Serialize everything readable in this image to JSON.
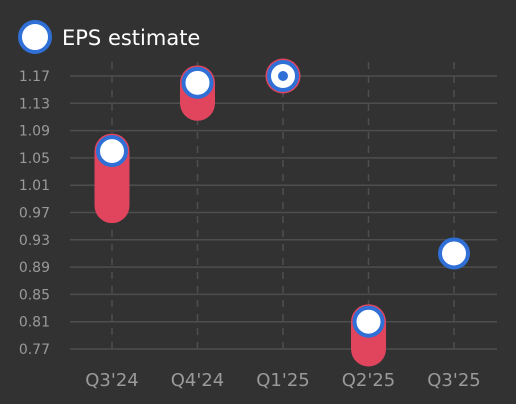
{
  "legend": {
    "label": "EPS estimate",
    "placement": "top-left"
  },
  "colors": {
    "background": "#323232",
    "grid": "#4e4e4e",
    "tick_text": "#9a9a9a",
    "legend_text": "#ffffff",
    "marker_stroke": "#2f6fd6",
    "marker_fill": "#ffffff",
    "bar": "#e0455d"
  },
  "chart_data": {
    "type": "scatter",
    "categories": [
      "Q3'24",
      "Q4'24",
      "Q1'25",
      "Q2'25",
      "Q3'25"
    ],
    "series": [
      {
        "name": "EPS estimate",
        "values": [
          1.06,
          1.16,
          1.17,
          0.81,
          0.91
        ]
      }
    ],
    "difference_bars": [
      {
        "category": "Q3'24",
        "from": 0.98,
        "to": 1.06
      },
      {
        "category": "Q4'24",
        "from": 1.13,
        "to": 1.16
      },
      {
        "category": "Q1'25",
        "from": 1.17,
        "to": 1.17
      },
      {
        "category": "Q2'25",
        "from": 0.77,
        "to": 0.81
      }
    ],
    "yticks": [
      0.77,
      0.81,
      0.85,
      0.89,
      0.93,
      0.97,
      1.01,
      1.05,
      1.09,
      1.13,
      1.17
    ],
    "ytick_labels": [
      "0.77",
      "0.81",
      "0.85",
      "0.89",
      "0.93",
      "0.97",
      "1.01",
      "1.05",
      "1.09",
      "1.13",
      "1.17"
    ],
    "ylim": [
      0.77,
      1.17
    ],
    "grid": true,
    "xlabel": "",
    "ylabel": "",
    "title": ""
  }
}
